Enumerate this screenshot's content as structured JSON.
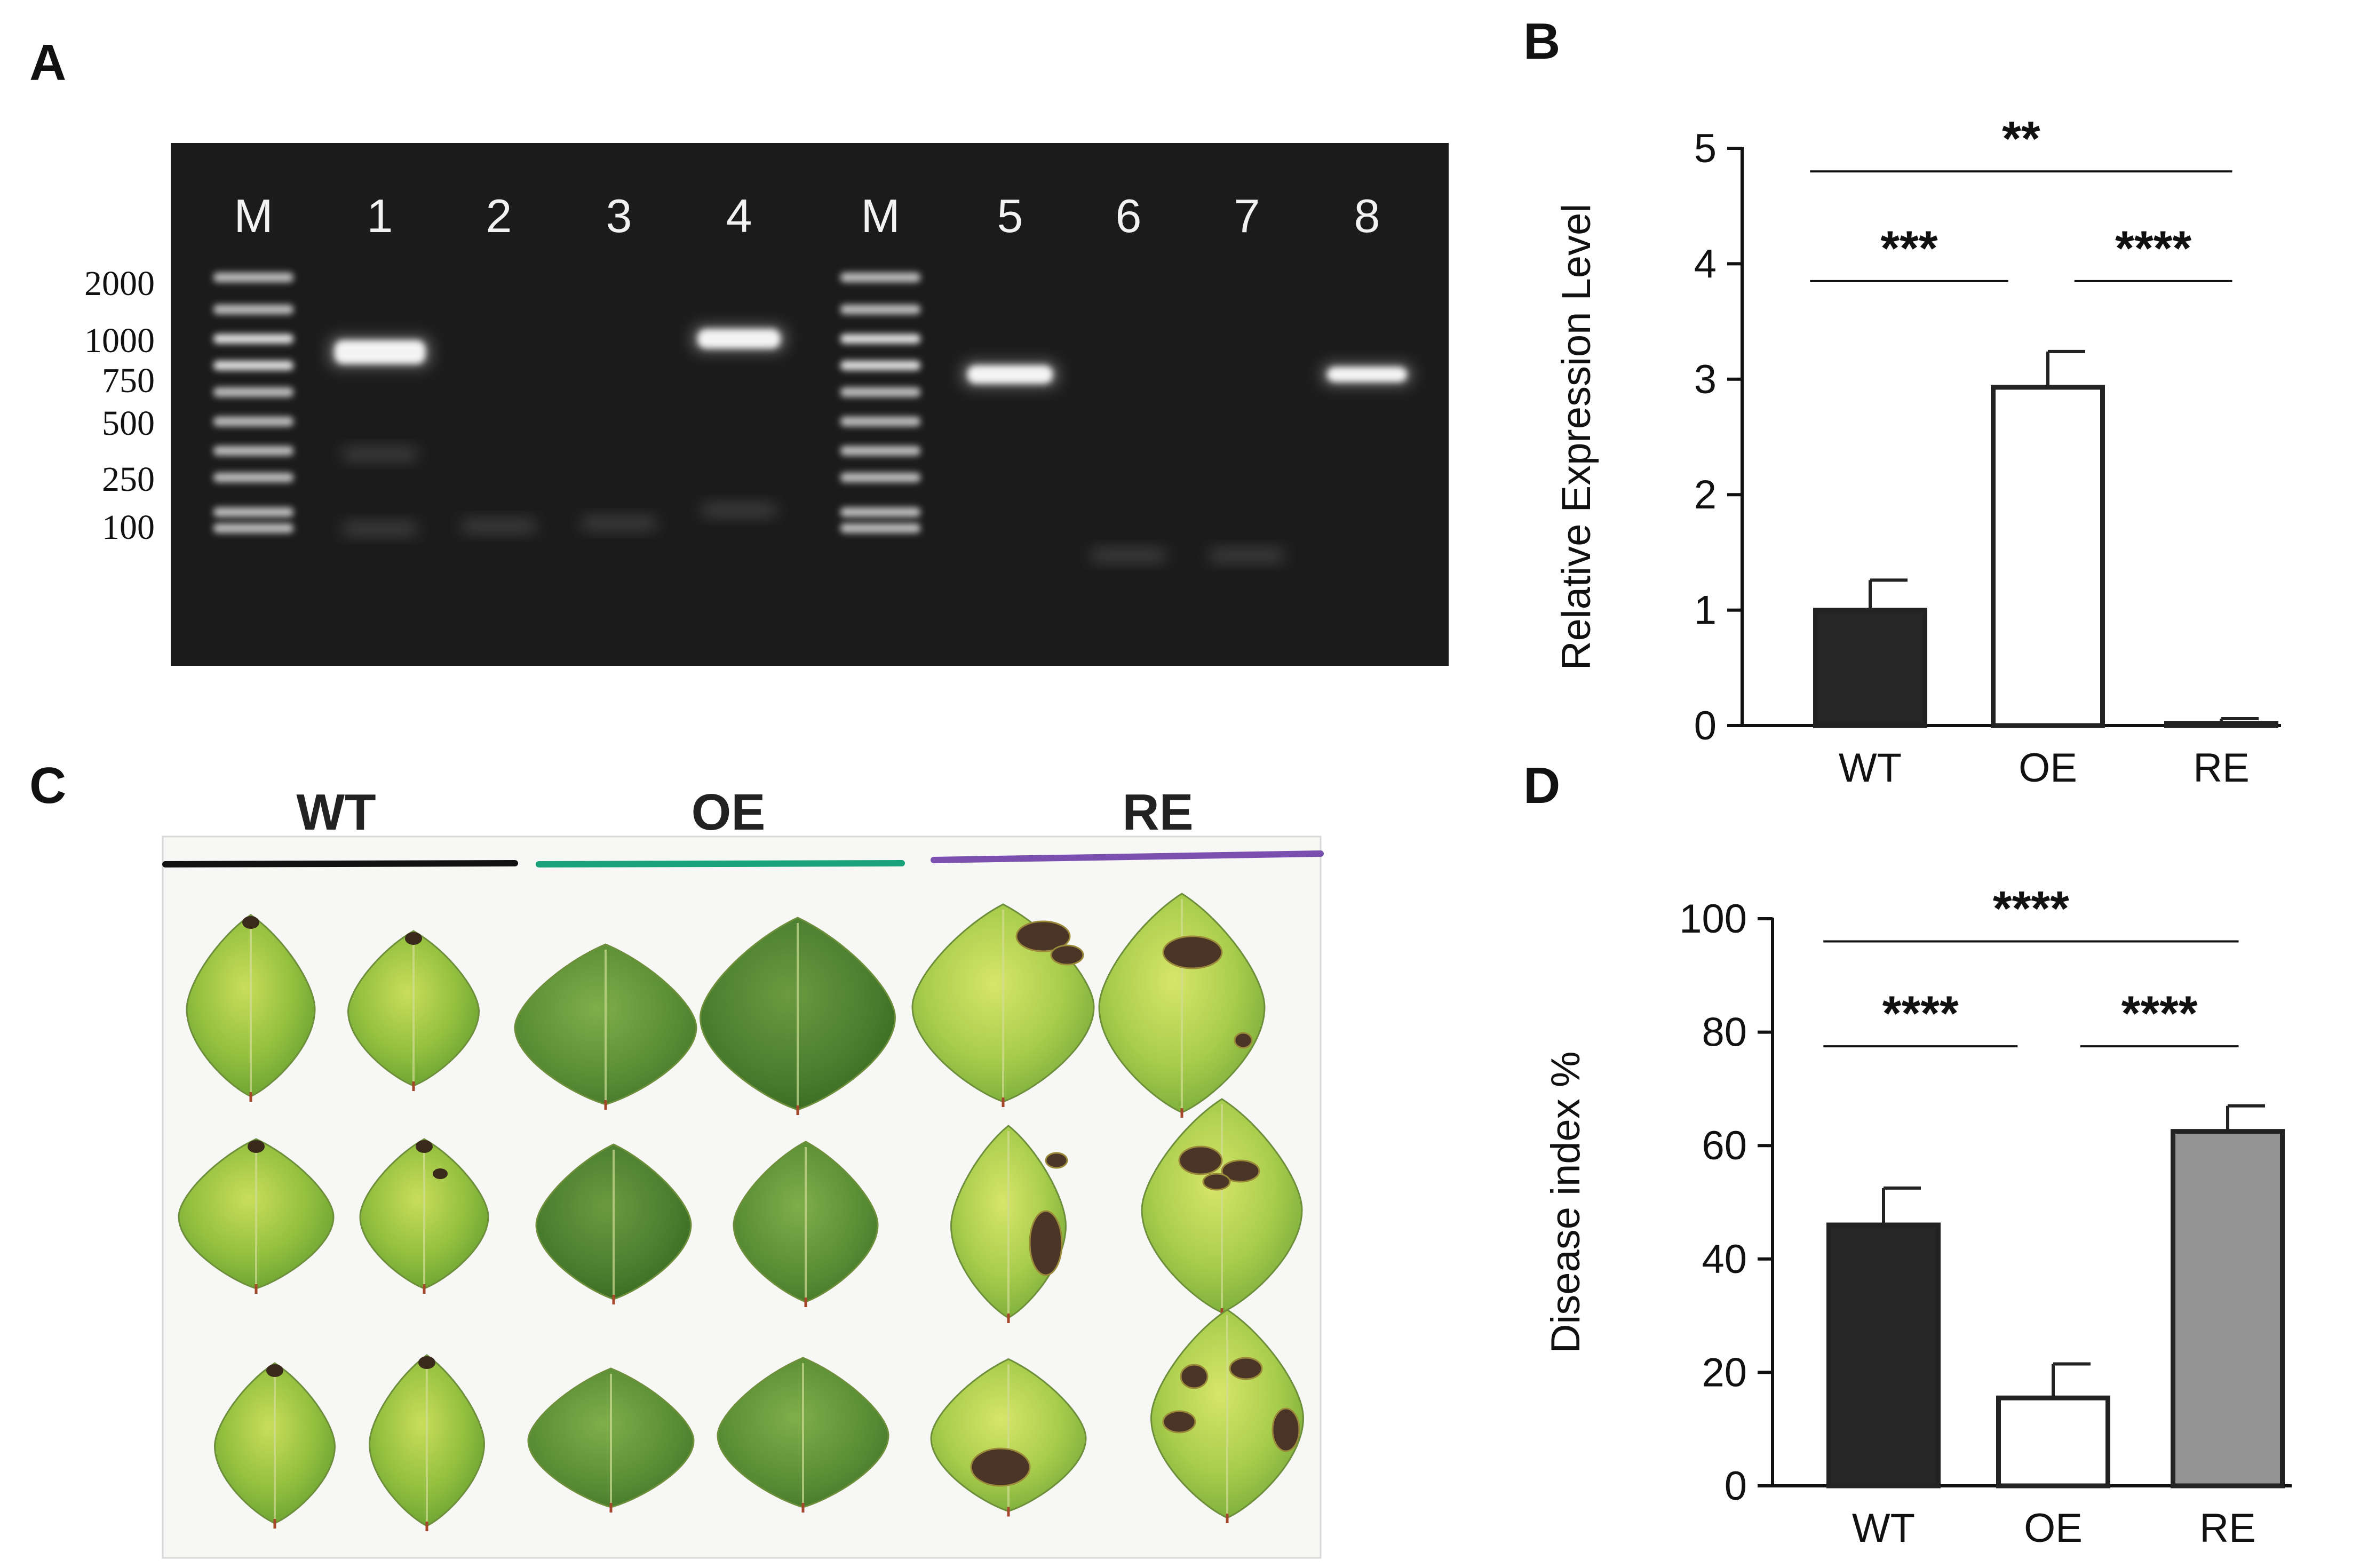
{
  "panels": {
    "A": "A",
    "B": "B",
    "C": "C",
    "D": "D"
  },
  "gel": {
    "lanes": [
      "M",
      "1",
      "2",
      "3",
      "4",
      "M",
      "5",
      "6",
      "7",
      "8"
    ],
    "ladder_sizes": [
      "2000",
      "1000",
      "750",
      "500",
      "250",
      "100"
    ],
    "band_lanes": [
      "1",
      "4",
      "5",
      "8"
    ]
  },
  "leaf_photo": {
    "groups": [
      {
        "label": "WT",
        "color": "#111111"
      },
      {
        "label": "OE",
        "color": "#1aa37a"
      },
      {
        "label": "RE",
        "color": "#7a4fb0"
      }
    ]
  },
  "chart_data": [
    {
      "type": "bar",
      "panel": "B",
      "categories": [
        "WT",
        "OE",
        "RE"
      ],
      "values": [
        1.0,
        2.93,
        0.02
      ],
      "errors": [
        0.26,
        0.31,
        0.04
      ],
      "colors": [
        "#262626",
        "#ffffff",
        "#262626"
      ],
      "title": "",
      "xlabel": "",
      "ylabel": "Relative Expression Level",
      "ylim": [
        0,
        5
      ],
      "yticks": [
        "0",
        "1",
        "2",
        "3",
        "4",
        "5"
      ],
      "significance": [
        {
          "from": 0,
          "to": 2,
          "label": "**",
          "level": 4.8
        },
        {
          "from": 0,
          "to": 1,
          "label": "***",
          "level": 3.85
        },
        {
          "from": 1,
          "to": 2,
          "label": "****",
          "level": 3.85
        }
      ]
    },
    {
      "type": "bar",
      "panel": "D",
      "categories": [
        "WT",
        "OE",
        "RE"
      ],
      "values": [
        46,
        15.5,
        62.5
      ],
      "errors": [
        6.5,
        6.0,
        4.5
      ],
      "colors": [
        "#262626",
        "#ffffff",
        "#939393"
      ],
      "title": "",
      "xlabel": "",
      "ylabel": "Disease index %",
      "ylim": [
        0,
        100
      ],
      "yticks": [
        "0",
        "20",
        "40",
        "60",
        "80",
        "100"
      ],
      "significance": [
        {
          "from": 0,
          "to": 2,
          "label": "****",
          "level": 96
        },
        {
          "from": 0,
          "to": 1,
          "label": "****",
          "level": 77.5
        },
        {
          "from": 1,
          "to": 2,
          "label": "****",
          "level": 77.5
        }
      ]
    }
  ]
}
